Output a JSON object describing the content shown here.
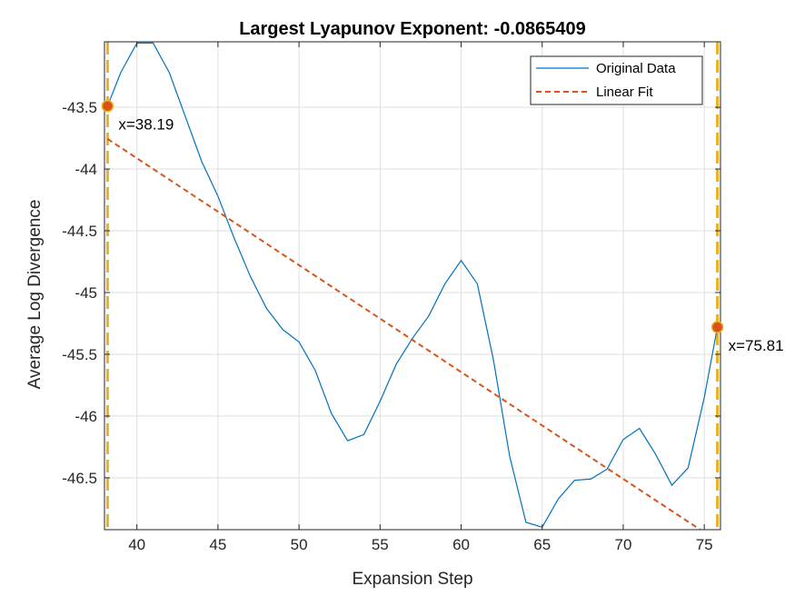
{
  "chart_data": {
    "type": "line",
    "title": "Largest Lyapunov Exponent: -0.0865409",
    "xlabel": "Expansion Step",
    "ylabel": "Average Log Divergence",
    "xlim": [
      38.0,
      76.0
    ],
    "ylim": [
      -46.92,
      -42.97
    ],
    "xticks": [
      40,
      45,
      50,
      55,
      60,
      65,
      70,
      75
    ],
    "xtick_labels": [
      "40",
      "45",
      "50",
      "55",
      "60",
      "65",
      "70",
      "75"
    ],
    "yticks": [
      -43.5,
      -44,
      -44.5,
      -45,
      -45.5,
      -46,
      -46.5
    ],
    "ytick_labels": [
      "-43.5",
      "-44",
      "-44.5",
      "-45",
      "-45.5",
      "-46",
      "-46.5"
    ],
    "grid": true,
    "legend_position": "top-right",
    "series": [
      {
        "name": "Original Data",
        "style": "solid",
        "color": "#0072BD",
        "x": [
          38.19,
          39,
          40,
          41,
          42,
          43,
          44,
          45,
          46,
          47,
          48,
          49,
          50,
          51,
          52,
          53,
          54,
          55,
          56,
          57,
          58,
          59,
          60,
          61,
          62,
          63,
          64,
          65,
          66,
          67,
          68,
          69,
          70,
          71,
          72,
          73,
          74,
          75,
          75.81
        ],
        "y": [
          -43.49,
          -43.22,
          -42.98,
          -42.98,
          -43.22,
          -43.58,
          -43.94,
          -44.22,
          -44.56,
          -44.87,
          -45.13,
          -45.3,
          -45.4,
          -45.63,
          -45.98,
          -46.2,
          -46.15,
          -45.88,
          -45.58,
          -45.37,
          -45.19,
          -44.93,
          -44.74,
          -44.93,
          -45.55,
          -46.33,
          -46.86,
          -46.9,
          -46.67,
          -46.52,
          -46.51,
          -46.43,
          -46.19,
          -46.1,
          -46.31,
          -46.56,
          -46.42,
          -45.85,
          -45.28
        ]
      },
      {
        "name": "Linear Fit",
        "style": "dashed",
        "color": "#D95319",
        "x": [
          38.19,
          75.81
        ],
        "y": [
          -43.756,
          -47.012
        ]
      }
    ],
    "vertical_lines": [
      {
        "x": 38.19,
        "color": "#EDB120"
      },
      {
        "x": 75.81,
        "color": "#EDB120"
      }
    ],
    "markers": [
      {
        "x": 38.19,
        "y": -43.49,
        "label": "x=38.19",
        "color": "#D95319"
      },
      {
        "x": 75.81,
        "y": -45.28,
        "label": "x=75.81",
        "color": "#D95319"
      }
    ]
  }
}
